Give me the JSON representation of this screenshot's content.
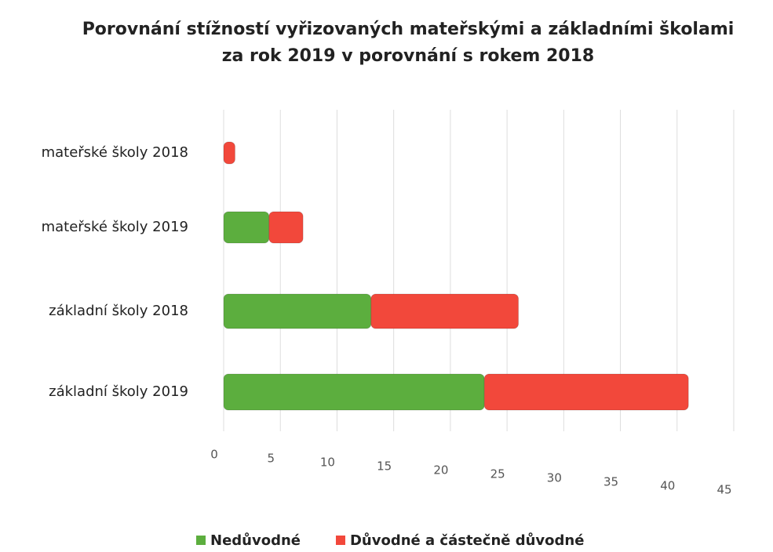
{
  "chart_data": {
    "type": "bar",
    "orientation": "horizontal",
    "stacked": true,
    "title": [
      "Porovnání stížností vyřizovaných mateřskými a základními školami",
      "za rok 2019 v porovnání s rokem 2018"
    ],
    "categories": [
      "mateřské školy 2018",
      "mateřské školy 2019",
      "základní školy 2018",
      "základní školy 2019"
    ],
    "series": [
      {
        "name": "Nedůvodné",
        "color": "#5cae3e",
        "values": [
          0,
          4,
          13,
          23
        ]
      },
      {
        "name": "Důvodné a částečně důvodné",
        "color": "#f2483b",
        "values": [
          1,
          3,
          13,
          18
        ]
      }
    ],
    "xlim": [
      0,
      45
    ],
    "xticks": [
      0,
      5,
      10,
      15,
      20,
      25,
      30,
      35,
      40,
      45
    ],
    "grid": true,
    "legend": "bottom"
  }
}
